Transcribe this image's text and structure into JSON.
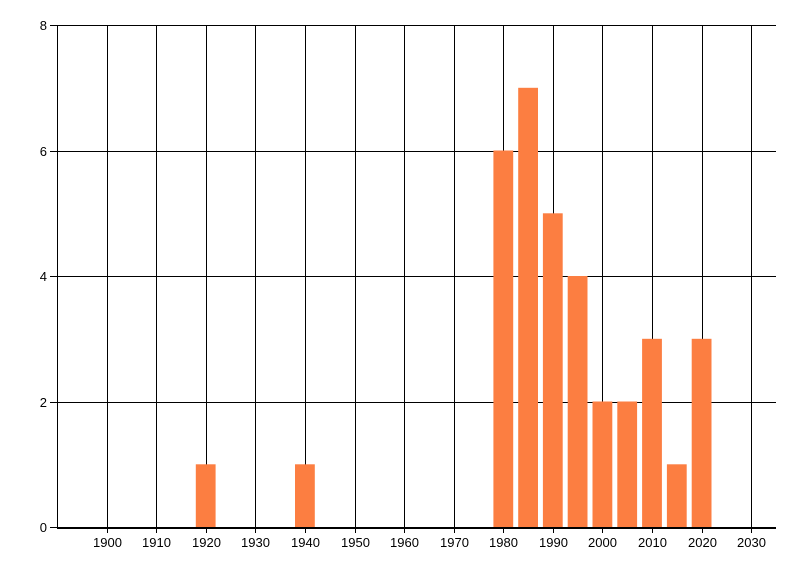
{
  "chart_data": {
    "type": "bar",
    "title": "",
    "xlabel": "",
    "ylabel": "",
    "x": [
      1920,
      1940,
      1980,
      1985,
      1990,
      1995,
      2000,
      2005,
      2010,
      2015,
      2020
    ],
    "values": [
      1,
      1,
      6,
      7,
      5,
      4,
      2,
      2,
      3,
      1,
      3
    ],
    "bar_width_years": 4,
    "xlim": [
      1890,
      2035
    ],
    "ylim": [
      0,
      8
    ],
    "x_ticks": [
      1900,
      1910,
      1920,
      1930,
      1940,
      1950,
      1960,
      1970,
      1980,
      1990,
      2000,
      2010,
      2020,
      2030
    ],
    "x_gridlines": [
      1890,
      1900,
      1910,
      1920,
      1930,
      1940,
      1950,
      1960,
      1970,
      1980,
      1990,
      2000,
      2010,
      2020,
      2030
    ],
    "y_ticks": [
      0,
      2,
      4,
      6,
      8
    ],
    "grid": true,
    "legend": false,
    "colors": {
      "bar": "#FC7E41",
      "axis": "#000000",
      "grid": "#000000",
      "background": "#FFFFFF",
      "tick_label": "#000000"
    }
  }
}
